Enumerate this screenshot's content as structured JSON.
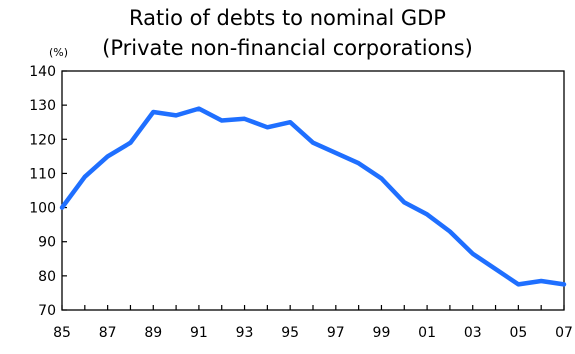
{
  "chart_data": {
    "type": "line",
    "title_lines": [
      "Ratio of debts to nominal GDP",
      "(Private non-financial corporations)"
    ],
    "unit_label": "(%)",
    "xlabel": "",
    "ylabel": "",
    "ylim": [
      70,
      140
    ],
    "yticks": [
      70,
      80,
      90,
      100,
      110,
      120,
      130,
      140
    ],
    "xlim": [
      1985,
      2007
    ],
    "x_tick_labels": [
      {
        "year": 1985,
        "label": "85"
      },
      {
        "year": 1987,
        "label": "87"
      },
      {
        "year": 1989,
        "label": "89"
      },
      {
        "year": 1991,
        "label": "91"
      },
      {
        "year": 1993,
        "label": "93"
      },
      {
        "year": 1995,
        "label": "95"
      },
      {
        "year": 1997,
        "label": "97"
      },
      {
        "year": 1999,
        "label": "99"
      },
      {
        "year": 2001,
        "label": "01"
      },
      {
        "year": 2003,
        "label": "03"
      },
      {
        "year": 2005,
        "label": "05"
      },
      {
        "year": 2007,
        "label": "07"
      }
    ],
    "grid": false,
    "legend": "none",
    "series": [
      {
        "color": "#1f6fff",
        "x": [
          1985,
          1986,
          1987,
          1988,
          1989,
          1990,
          1991,
          1992,
          1993,
          1994,
          1995,
          1996,
          1997,
          1998,
          1999,
          2000,
          2001,
          2002,
          2003,
          2004,
          2005,
          2006,
          2007
        ],
        "values": [
          100,
          109,
          115,
          119,
          128,
          127,
          129,
          125.5,
          126,
          123.5,
          125,
          119,
          116,
          113,
          108.5,
          101.5,
          98,
          93,
          86.5,
          82,
          77.5,
          78.5,
          77.5
        ]
      }
    ]
  }
}
